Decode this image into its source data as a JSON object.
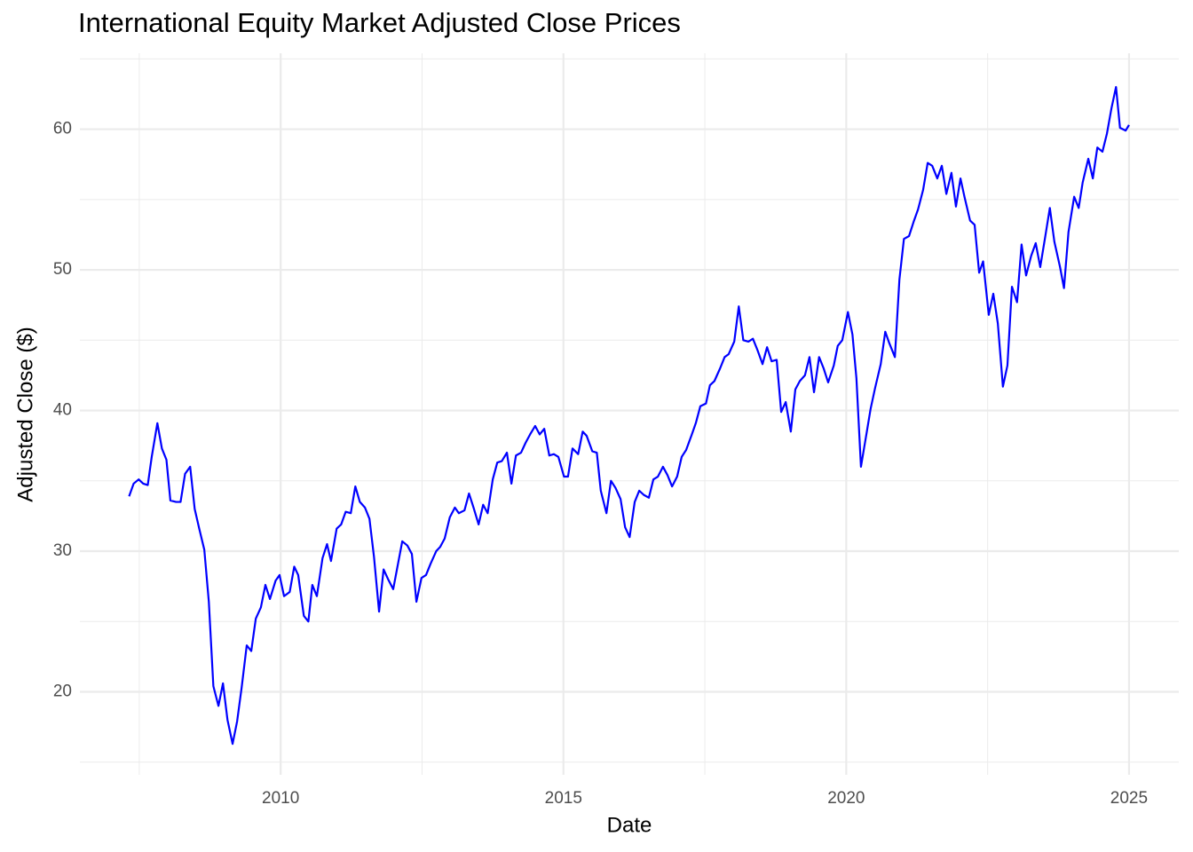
{
  "chart_data": {
    "type": "line",
    "title": "International Equity Market Adjusted Close Prices",
    "x_label": "Date",
    "y_label": "Adjusted Close ($)",
    "color": "blue",
    "grid": true,
    "xlim": [
      2006.45,
      2025.88
    ],
    "xticks": [
      2010,
      2015,
      2020,
      2025
    ],
    "ylim": [
      14.1,
      65.4
    ],
    "yticks": [
      20,
      30,
      40,
      50,
      60
    ],
    "x": [
      2007.32,
      2007.4,
      2007.49,
      2007.57,
      2007.65,
      2007.72,
      2007.82,
      2007.9,
      2007.98,
      2008.05,
      2008.15,
      2008.23,
      2008.31,
      2008.4,
      2008.48,
      2008.56,
      2008.65,
      2008.73,
      2008.81,
      2008.9,
      2008.98,
      2009.06,
      2009.15,
      2009.23,
      2009.31,
      2009.4,
      2009.48,
      2009.56,
      2009.65,
      2009.73,
      2009.81,
      2009.91,
      2009.98,
      2010.06,
      2010.16,
      2010.24,
      2010.31,
      2010.41,
      2010.49,
      2010.56,
      2010.64,
      2010.74,
      2010.82,
      2010.89,
      2010.99,
      2011.07,
      2011.15,
      2011.24,
      2011.32,
      2011.4,
      2011.49,
      2011.57,
      2011.65,
      2011.74,
      2011.82,
      2011.9,
      2011.99,
      2012.07,
      2012.15,
      2012.24,
      2012.32,
      2012.4,
      2012.49,
      2012.57,
      2012.65,
      2012.75,
      2012.82,
      2012.9,
      2012.99,
      2013.08,
      2013.15,
      2013.25,
      2013.33,
      2013.41,
      2013.5,
      2013.58,
      2013.66,
      2013.75,
      2013.83,
      2013.91,
      2014.0,
      2014.08,
      2014.16,
      2014.25,
      2014.33,
      2014.41,
      2014.5,
      2014.58,
      2014.66,
      2014.75,
      2014.83,
      2014.91,
      2015.01,
      2015.08,
      2015.16,
      2015.26,
      2015.34,
      2015.41,
      2015.51,
      2015.59,
      2015.66,
      2015.76,
      2015.84,
      2015.92,
      2016.01,
      2016.09,
      2016.17,
      2016.26,
      2016.34,
      2016.42,
      2016.51,
      2016.59,
      2016.67,
      2016.76,
      2016.84,
      2016.92,
      2017.01,
      2017.09,
      2017.17,
      2017.27,
      2017.34,
      2017.42,
      2017.52,
      2017.59,
      2017.67,
      2017.77,
      2017.85,
      2017.92,
      2018.02,
      2018.1,
      2018.18,
      2018.27,
      2018.35,
      2018.43,
      2018.52,
      2018.6,
      2018.68,
      2018.77,
      2018.85,
      2018.93,
      2019.02,
      2019.1,
      2019.18,
      2019.27,
      2019.35,
      2019.43,
      2019.52,
      2019.6,
      2019.68,
      2019.78,
      2019.85,
      2019.93,
      2020.03,
      2020.11,
      2020.18,
      2020.26,
      2020.36,
      2020.43,
      2020.51,
      2020.61,
      2020.69,
      2020.76,
      2020.86,
      2020.94,
      2021.02,
      2021.11,
      2021.19,
      2021.27,
      2021.36,
      2021.44,
      2021.52,
      2021.61,
      2021.69,
      2021.77,
      2021.86,
      2021.94,
      2022.02,
      2022.09,
      2022.19,
      2022.27,
      2022.35,
      2022.42,
      2022.52,
      2022.6,
      2022.68,
      2022.77,
      2022.85,
      2022.93,
      2023.02,
      2023.1,
      2023.18,
      2023.27,
      2023.35,
      2023.43,
      2023.52,
      2023.6,
      2023.68,
      2023.78,
      2023.85,
      2023.93,
      2024.03,
      2024.11,
      2024.18,
      2024.28,
      2024.36,
      2024.44,
      2024.53,
      2024.61,
      2024.69,
      2024.77,
      2024.84,
      2024.94,
      2025.0
    ],
    "values": [
      33.9,
      34.8,
      35.1,
      34.8,
      34.7,
      36.7,
      39.1,
      37.3,
      36.5,
      33.6,
      33.5,
      33.5,
      35.5,
      36.0,
      33.0,
      31.6,
      30.1,
      26.4,
      20.4,
      19.0,
      20.6,
      18.0,
      16.3,
      17.9,
      20.3,
      23.3,
      22.9,
      25.2,
      26.0,
      27.6,
      26.6,
      27.9,
      28.3,
      26.8,
      27.1,
      28.9,
      28.3,
      25.4,
      25.0,
      27.6,
      26.8,
      29.5,
      30.5,
      29.3,
      31.6,
      31.9,
      32.8,
      32.7,
      34.6,
      33.5,
      33.1,
      32.3,
      29.6,
      25.7,
      28.7,
      28.0,
      27.3,
      29.0,
      30.7,
      30.4,
      29.8,
      26.4,
      28.1,
      28.3,
      29.1,
      30.0,
      30.3,
      30.9,
      32.4,
      33.1,
      32.7,
      32.9,
      34.1,
      33.1,
      31.9,
      33.3,
      32.7,
      35.1,
      36.3,
      36.4,
      37.0,
      34.8,
      36.8,
      37.0,
      37.7,
      38.3,
      38.9,
      38.3,
      38.7,
      36.8,
      36.9,
      36.7,
      35.3,
      35.3,
      37.3,
      36.9,
      38.5,
      38.2,
      37.1,
      37.0,
      34.3,
      32.7,
      35.0,
      34.5,
      33.7,
      31.7,
      31.0,
      33.5,
      34.3,
      34.0,
      33.8,
      35.1,
      35.3,
      36.0,
      35.4,
      34.6,
      35.3,
      36.7,
      37.2,
      38.3,
      39.1,
      40.3,
      40.5,
      41.8,
      42.1,
      43.0,
      43.8,
      44.0,
      44.9,
      47.4,
      45.0,
      44.9,
      45.1,
      44.3,
      43.3,
      44.5,
      43.5,
      43.6,
      39.9,
      40.6,
      38.5,
      41.5,
      42.1,
      42.5,
      43.8,
      41.3,
      43.8,
      43.0,
      42.0,
      43.2,
      44.6,
      45.0,
      47.0,
      45.4,
      42.3,
      36.0,
      38.4,
      40.1,
      41.6,
      43.3,
      45.6,
      44.8,
      43.8,
      49.3,
      52.2,
      52.4,
      53.4,
      54.3,
      55.7,
      57.6,
      57.4,
      56.5,
      57.4,
      55.4,
      56.9,
      54.5,
      56.5,
      55.2,
      53.5,
      53.2,
      49.8,
      50.6,
      46.8,
      48.3,
      46.2,
      41.7,
      43.2,
      48.8,
      47.7,
      51.8,
      49.6,
      51.0,
      51.9,
      50.2,
      52.4,
      54.4,
      52.0,
      50.2,
      48.7,
      52.7,
      55.2,
      54.4,
      56.2,
      57.9,
      56.5,
      58.7,
      58.4,
      59.7,
      61.5,
      63.0,
      60.1,
      59.9,
      60.3
    ]
  }
}
